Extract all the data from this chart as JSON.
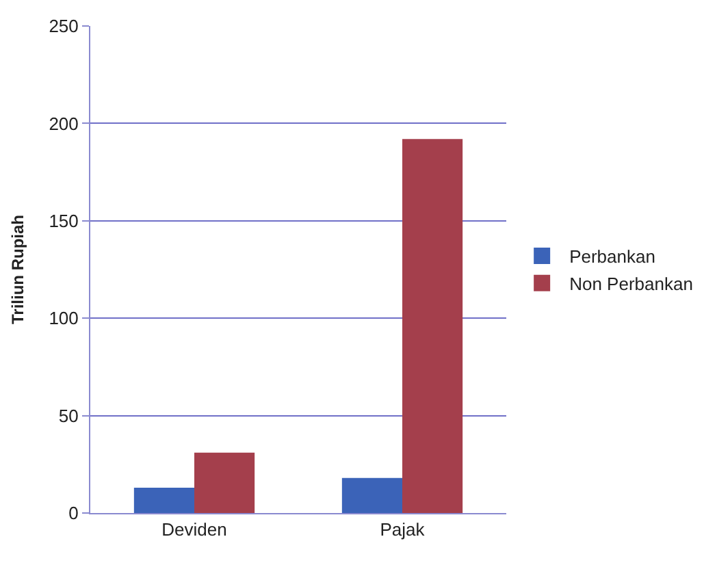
{
  "chart_data": {
    "type": "bar",
    "ylabel": "Triliun Rupiah",
    "categories": [
      "Deviden",
      "Pajak"
    ],
    "series": [
      {
        "name": "Perbankan",
        "color": "#3b63b8",
        "values": [
          13,
          18
        ]
      },
      {
        "name": "Non Perbankan",
        "color": "#a43f4c",
        "values": [
          31,
          192
        ]
      }
    ],
    "ylim": [
      0,
      250
    ],
    "yticks": [
      0,
      50,
      100,
      150,
      200,
      250
    ],
    "grid": "y",
    "legend": "right"
  }
}
